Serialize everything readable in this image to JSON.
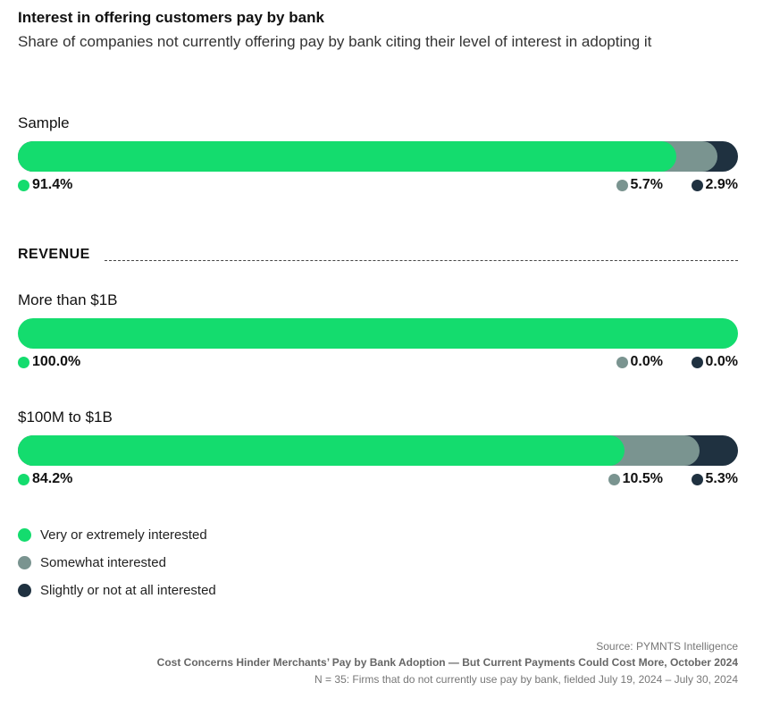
{
  "chart_data": {
    "type": "bar",
    "orientation": "horizontal-stacked",
    "title": "Interest in offering customers pay by bank",
    "subtitle": "Share of companies not currently offering pay by bank citing their level of interest in adopting it",
    "section_label": "REVENUE",
    "categories": [
      "Sample",
      "More than $1B",
      "$100M to $1B"
    ],
    "series": [
      {
        "name": "Very or extremely interested",
        "color": "#14DC6E",
        "values": [
          91.4,
          100.0,
          84.2
        ],
        "labels": [
          "91.4%",
          "100.0%",
          "84.2%"
        ]
      },
      {
        "name": "Somewhat interested",
        "color": "#7A9490",
        "values": [
          5.7,
          0.0,
          10.5
        ],
        "labels": [
          "5.7%",
          "0.0%",
          "10.5%"
        ]
      },
      {
        "name": "Slightly or not at all interested",
        "color": "#1F3140",
        "values": [
          2.9,
          0.0,
          5.3
        ],
        "labels": [
          "2.9%",
          "0.0%",
          "5.3%"
        ]
      }
    ],
    "xlim": [
      0,
      100
    ],
    "legend_position": "bottom-left"
  },
  "footer": {
    "source": "Source: PYMNTS Intelligence",
    "report": "Cost Concerns Hinder Merchants’ Pay by Bank Adoption — But Current Payments Could Cost More, October 2024",
    "note": "N = 35: Firms that do not currently use pay by bank, fielded July 19, 2024 – July 30, 2024"
  }
}
